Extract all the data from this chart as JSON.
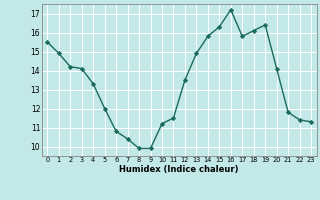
{
  "x": [
    0,
    1,
    2,
    3,
    4,
    5,
    6,
    7,
    8,
    9,
    10,
    11,
    12,
    13,
    14,
    15,
    16,
    17,
    18,
    19,
    20,
    21,
    22,
    23
  ],
  "y": [
    15.5,
    14.9,
    14.2,
    14.1,
    13.3,
    12.0,
    10.8,
    10.4,
    9.9,
    9.9,
    11.2,
    11.5,
    13.5,
    14.9,
    15.8,
    16.3,
    17.2,
    15.8,
    16.1,
    16.4,
    14.1,
    11.8,
    11.4,
    11.3
  ],
  "xlabel": "Humidex (Indice chaleur)",
  "ylim": [
    9.5,
    17.5
  ],
  "xlim": [
    -0.5,
    23.5
  ],
  "yticks": [
    10,
    11,
    12,
    13,
    14,
    15,
    16,
    17
  ],
  "xticks": [
    0,
    1,
    2,
    3,
    4,
    5,
    6,
    7,
    8,
    9,
    10,
    11,
    12,
    13,
    14,
    15,
    16,
    17,
    18,
    19,
    20,
    21,
    22,
    23
  ],
  "line_color": "#1a6b5a",
  "marker_color": "#1a6b5a",
  "bg_color": "#c2e8e8",
  "grid_color": "#ffffff",
  "axis_color": "#888888"
}
